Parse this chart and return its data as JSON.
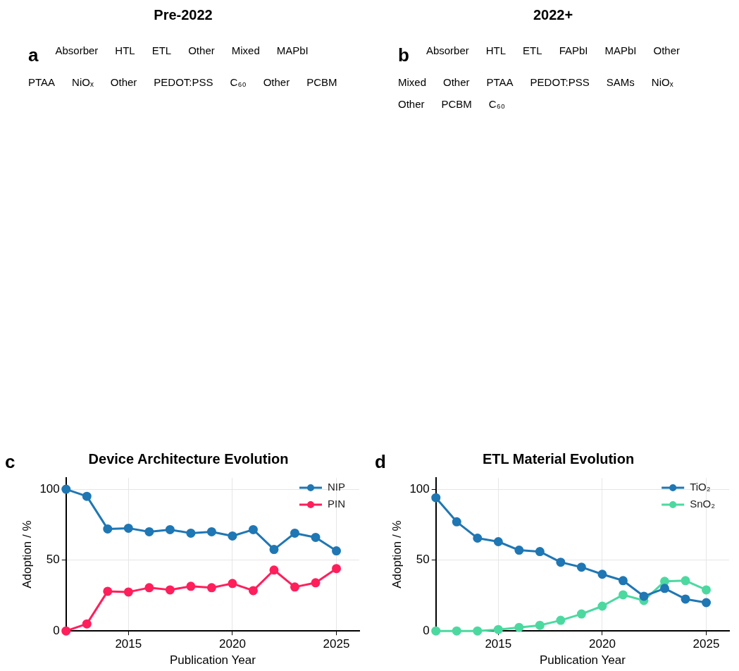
{
  "chart_data": [
    {
      "type": "other",
      "title": "Pre-2022",
      "annotations": [
        "a",
        "Absorber",
        "HTL",
        "ETL",
        "Other",
        "Mixed",
        "MAPbI",
        "PTAA",
        "NiOₓ",
        "Other",
        "PEDOT:PSS",
        "C₆₀",
        "Other",
        "PCBM"
      ]
    },
    {
      "type": "other",
      "title": "2022+",
      "annotations": [
        "b",
        "Absorber",
        "HTL",
        "ETL",
        "FAPbI",
        "MAPbI",
        "Other",
        "Mixed",
        "Other",
        "PTAA",
        "PEDOT:PSS",
        "SAMs",
        "NiOₓ",
        "Other",
        "PCBM",
        "C₆₀"
      ]
    },
    {
      "type": "line",
      "title": "Device Architecture Evolution",
      "annotations": [
        "c"
      ],
      "xlabel": "Publication Year",
      "ylabel": "Adoption / %",
      "x": [
        2012,
        2013,
        2014,
        2015,
        2016,
        2017,
        2018,
        2019,
        2020,
        2021,
        2022,
        2023,
        2024,
        2025
      ],
      "xlim": [
        2012,
        2026.1
      ],
      "xticks": [
        2015,
        2020,
        2025
      ],
      "ylim": [
        0,
        108
      ],
      "yticks": [
        0,
        50,
        100
      ],
      "grid": true,
      "legend": "top right",
      "marker": "circle",
      "series": [
        {
          "name": "NIP",
          "color": "#1f77b4",
          "values": [
            100,
            95,
            72,
            72.5,
            70,
            71.5,
            69,
            70,
            67,
            71.5,
            57.5,
            69,
            66,
            56.5
          ]
        },
        {
          "name": "PIN",
          "color": "#ff1f5b",
          "values": [
            0,
            5,
            28,
            27.5,
            30.5,
            29,
            31.5,
            30.5,
            33.5,
            28.5,
            43,
            31,
            34,
            44
          ]
        }
      ]
    },
    {
      "type": "line",
      "title": "ETL Material Evolution",
      "annotations": [
        "d"
      ],
      "xlabel": "Publication Year",
      "ylabel": "Adoption / %",
      "x": [
        2012,
        2013,
        2014,
        2015,
        2016,
        2017,
        2018,
        2019,
        2020,
        2021,
        2022,
        2023,
        2024,
        2025
      ],
      "xlim": [
        2012,
        2026.1
      ],
      "xticks": [
        2015,
        2020,
        2025
      ],
      "ylim": [
        0,
        108
      ],
      "yticks": [
        0,
        50,
        100
      ],
      "grid": true,
      "legend": "top right",
      "marker": "circle",
      "series": [
        {
          "name": "TiO₂",
          "color": "#1f77b4",
          "values": [
            94,
            77,
            65.5,
            63,
            57,
            56,
            48.5,
            45,
            40,
            35.5,
            24.5,
            30,
            22.5,
            20
          ]
        },
        {
          "name": "SnO₂",
          "color": "#4cd9a0",
          "values": [
            0,
            0,
            0,
            1,
            2.5,
            4,
            7.5,
            12,
            17.5,
            25.5,
            21.5,
            35,
            35.5,
            29
          ]
        }
      ]
    }
  ]
}
